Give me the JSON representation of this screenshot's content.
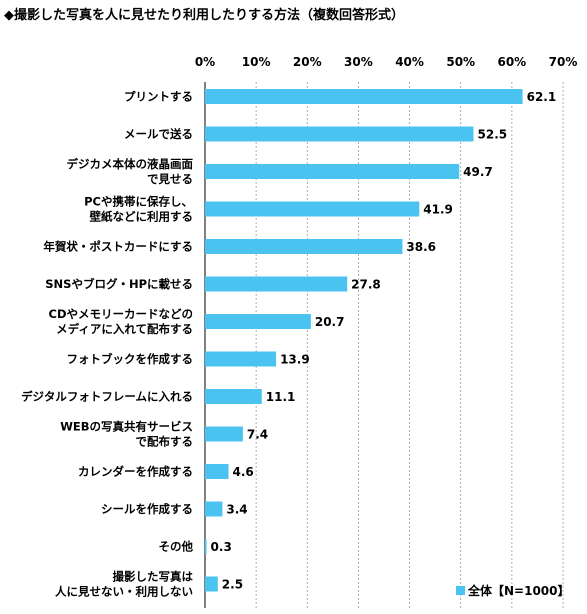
{
  "title": "◆撮影した写真を人に見せたり利用したりする方法（複数回答形式）",
  "chart_data": {
    "type": "bar",
    "orientation": "horizontal",
    "categories": [
      "プリントする",
      "メールで送る",
      "デジカメ本体の液晶画面\nで見せる",
      "PCや携帯に保存し、\n壁紙などに利用する",
      "年賀状・ポストカードにする",
      "SNSやブログ・HPに載せる",
      "CDやメモリーカードなどの\nメディアに入れて配布する",
      "フォトブックを作成する",
      "デジタルフォトフレームに入れる",
      "WEBの写真共有サービス\nで配布する",
      "カレンダーを作成する",
      "シールを作成する",
      "その他",
      "撮影した写真は\n人に見せない・利用しない"
    ],
    "series": [
      {
        "name": "全体【N=1000】",
        "values": [
          62.1,
          52.5,
          49.7,
          41.9,
          38.6,
          27.8,
          20.7,
          13.9,
          11.1,
          7.4,
          4.6,
          3.4,
          0.3,
          2.5
        ],
        "color": "#4BC3F0"
      }
    ],
    "value_labels": [
      "62.1",
      "52.5",
      "49.7",
      "41.9",
      "38.6",
      "27.8",
      "20.7",
      "13.9",
      "11.1",
      "7.4",
      "4.6",
      "3.4",
      "0.3",
      "2.5"
    ],
    "xlim": [
      0,
      70
    ],
    "xticks": [
      "0%",
      "10%",
      "20%",
      "30%",
      "40%",
      "50%",
      "60%",
      "70%"
    ],
    "grid": true,
    "legend_position": "bottom-right"
  }
}
